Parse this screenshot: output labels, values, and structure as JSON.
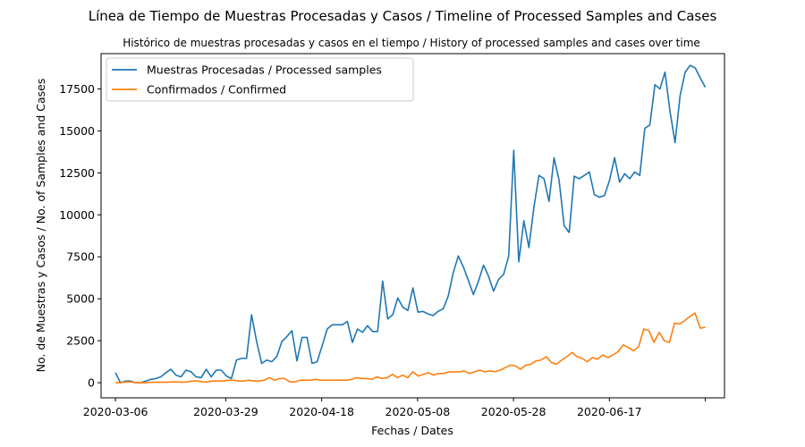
{
  "chart_data": {
    "type": "line",
    "title": "Línea de Tiempo de Muestras Procesadas y Casos / Timeline of Processed Samples and Cases",
    "subtitle": "Histórico de muestras procesadas y casos en el tiempo / History of processed samples and cases over time",
    "xlabel": "Fechas / Dates",
    "ylabel": "No. de Muestras y Casos / No. of Samples and Cases",
    "x_start": "2020-03-06",
    "x_end": "2020-07-07",
    "xlim": [
      "2020-03-03",
      "2020-07-11"
    ],
    "ylim": [
      -900,
      19600
    ],
    "x_ticks": [
      "2020-03-06",
      "2020-03-29",
      "2020-04-18",
      "2020-05-08",
      "2020-05-28",
      "2020-06-17",
      "2020-07-07"
    ],
    "x_tick_labels": [
      "2020-03-06",
      "2020-03-29",
      "2020-04-18",
      "2020-05-08",
      "2020-05-28",
      "2020-06-17",
      ""
    ],
    "y_ticks": [
      0,
      2500,
      5000,
      7500,
      10000,
      12500,
      15000,
      17500
    ],
    "y_tick_labels": [
      "0",
      "2500",
      "5000",
      "7500",
      "10000",
      "12500",
      "15000",
      "17500"
    ],
    "grid": false,
    "legend_position": "top-left",
    "series": [
      {
        "name": "Muestras Procesadas / Processed samples",
        "color": "#1f77b4",
        "values": [
          600,
          0,
          100,
          100,
          0,
          0,
          100,
          200,
          250,
          350,
          600,
          800,
          450,
          350,
          750,
          650,
          350,
          300,
          800,
          350,
          750,
          750,
          400,
          250,
          1350,
          1450,
          1450,
          4050,
          2450,
          1150,
          1350,
          1250,
          1550,
          2450,
          2750,
          3100,
          1300,
          2700,
          2700,
          1150,
          1250,
          2200,
          3200,
          3450,
          3450,
          3450,
          3650,
          2400,
          3200,
          3000,
          3400,
          3050,
          3050,
          6050,
          3800,
          4050,
          5050,
          4500,
          4300,
          5650,
          4200,
          4250,
          4100,
          4000,
          4250,
          4400,
          5150,
          6550,
          7550,
          6900,
          6100,
          5250,
          6050,
          7000,
          6350,
          5450,
          6150,
          6450,
          7550,
          13850,
          7200,
          9650,
          8050,
          10450,
          12350,
          12150,
          10800,
          13400,
          12050,
          9350,
          8950,
          12300,
          12150,
          12350,
          12550,
          11200,
          11050,
          11150,
          12050,
          13400,
          11950,
          12450,
          12150,
          12550,
          12350,
          15150,
          15350,
          17750,
          17500,
          18500,
          16150,
          14300,
          17100,
          18500,
          18900,
          18750,
          18150,
          17600
        ],
        "offsets": null
      },
      {
        "name": "Confirmados / Confirmed",
        "color": "#ff7f0e",
        "values": [
          0,
          0,
          50,
          50,
          0,
          0,
          0,
          30,
          30,
          30,
          30,
          50,
          50,
          30,
          50,
          100,
          100,
          50,
          50,
          100,
          100,
          100,
          150,
          150,
          100,
          100,
          150,
          100,
          100,
          150,
          300,
          150,
          250,
          250,
          50,
          50,
          150,
          150,
          150,
          200,
          150,
          150,
          150,
          150,
          150,
          150,
          200,
          300,
          250,
          250,
          200,
          350,
          250,
          300,
          500,
          300,
          450,
          300,
          650,
          400,
          500,
          600,
          450,
          550,
          550,
          650,
          650,
          650,
          700,
          550,
          650,
          750,
          650,
          700,
          650,
          750,
          900,
          1050,
          1000,
          800,
          1050,
          1100,
          1300,
          1350,
          1550,
          1200,
          1100,
          1350,
          1550,
          1800,
          1550,
          1450,
          1250,
          1500,
          1400,
          1650,
          1500,
          1650,
          1850,
          2250,
          2100,
          1900,
          2150,
          3200,
          3100,
          2400,
          3000,
          2500,
          2400,
          3550,
          3500,
          3700,
          3950,
          4150,
          3250,
          3300
        ],
        "offsets": null
      }
    ]
  }
}
